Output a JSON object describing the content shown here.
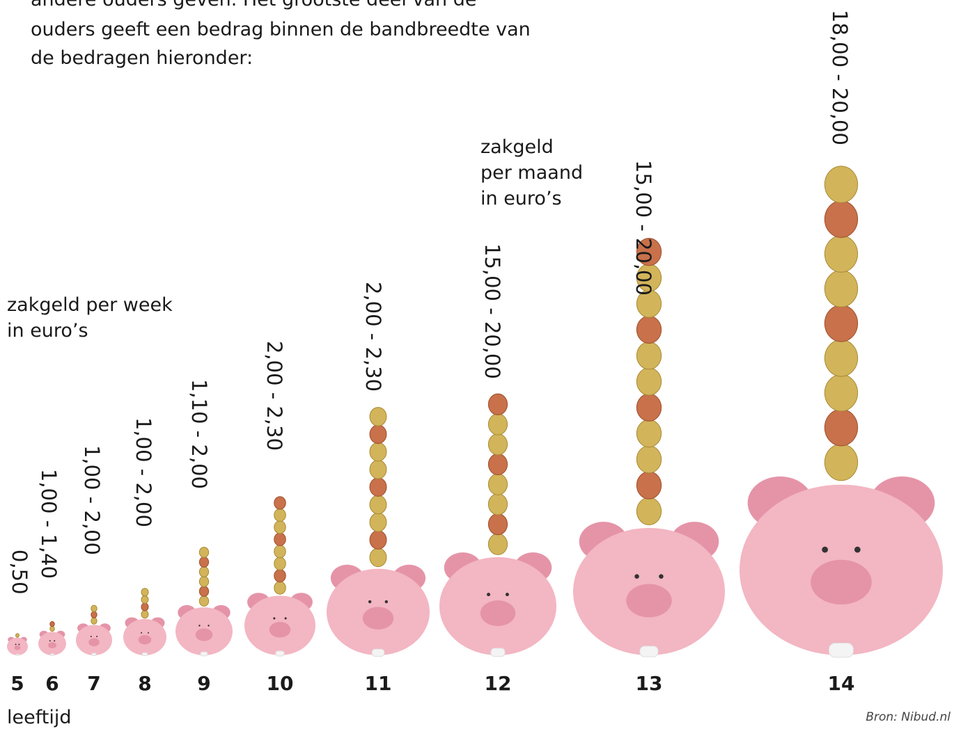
{
  "intro": [
    "andere ouders geven. Het grootste deel van de",
    "ouders geeft een bedrag binnen de bandbreedte van",
    "de bedragen hieronder:"
  ],
  "weekly_label": [
    "zakgeld per week",
    "in euro’s"
  ],
  "monthly_label": [
    "zakgeld",
    "per maand",
    "in euro’s"
  ],
  "items": [
    {
      "age": "5",
      "range": "0,50"
    },
    {
      "age": "6",
      "range": "1,00 - 1,40"
    },
    {
      "age": "7",
      "range": "1,00 - 2,00"
    },
    {
      "age": "8",
      "range": "1,00 - 2,00"
    },
    {
      "age": "9",
      "range": "1,10 - 2,00"
    },
    {
      "age": "10",
      "range": "2,00 - 2,30"
    },
    {
      "age": "11",
      "range": "2,00 - 2,30"
    },
    {
      "age": "12",
      "range": "15,00 - 20,00"
    },
    {
      "age": "13",
      "range": "15,00 - 20,00"
    },
    {
      "age": "14",
      "range": "18,00 - 20,00"
    }
  ],
  "axis_label": "leeftijd",
  "source": "Bron: Nibud.nl"
}
